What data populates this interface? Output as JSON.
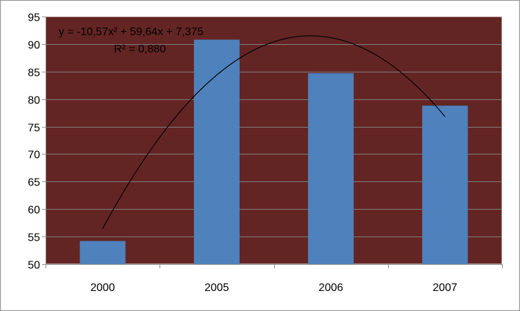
{
  "chart_data": {
    "type": "bar",
    "title": "",
    "xlabel": "",
    "ylabel": "",
    "categories": [
      "2000",
      "2005",
      "2006",
      "2007"
    ],
    "series": [
      {
        "values": [
          54.2,
          90.8,
          84.7,
          78.8
        ],
        "color": "#4f81bd"
      }
    ],
    "ylim": [
      50,
      95
    ],
    "yticks": [
      50,
      55,
      60,
      65,
      70,
      75,
      80,
      85,
      90,
      95
    ],
    "y_tick_labels": [
      "50",
      "55",
      "60",
      "65",
      "70",
      "75",
      "80",
      "85",
      "90",
      "95"
    ],
    "grid": true,
    "plot_background": "#632523",
    "gridline_color": "#7f7f7f",
    "trendline": {
      "type": "polynomial",
      "order": 2,
      "coefficients": [
        -10.57,
        59.64,
        7.375
      ],
      "equation": "y = -10,57x² + 59,64x + 7,375",
      "r_squared": "R² = 0,880",
      "color": "#000000"
    }
  }
}
